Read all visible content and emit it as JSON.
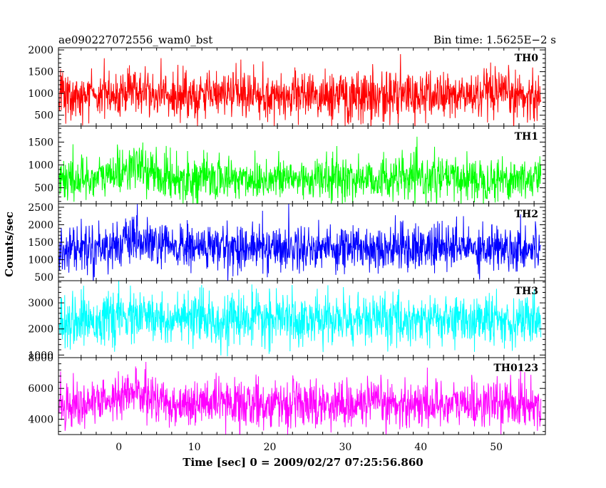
{
  "chart_data": {
    "type": "line",
    "title_left": "ae090227072556_wam0_bst",
    "title_right": "Bin time: 1.5625E−2 s",
    "xlabel": "Time [sec] 0 = 2009/02/27 07:25:56.860",
    "ylabel": "Counts/sec",
    "xlim": [
      -8,
      56.5
    ],
    "x_ticks": [
      0,
      10,
      20,
      30,
      40,
      50
    ],
    "x_tick_labels": [
      "0",
      "10",
      "20",
      "30",
      "40",
      "50"
    ],
    "data_range": [
      -7.9,
      55.9
    ],
    "bin_time": 0.015625,
    "panels": [
      {
        "name": "TH0",
        "color": "#ff0000",
        "ylim": [
          250,
          2050
        ],
        "y_ticks": [
          500,
          1000,
          1500,
          2000
        ],
        "y_tick_labels": [
          "500",
          "1000",
          "1500",
          "2000"
        ],
        "baseline": 950,
        "noise_sigma": 280,
        "burst_peak_sec": 2,
        "burst_boost": 100
      },
      {
        "name": "TH1",
        "color": "#00ff00",
        "ylim": [
          150,
          1850
        ],
        "y_ticks": [
          500,
          1000,
          1500
        ],
        "y_tick_labels": [
          "500",
          "1000",
          "1500"
        ],
        "baseline": 700,
        "noise_sigma": 240,
        "burst_peak_sec": 2,
        "burst_boost": 250
      },
      {
        "name": "TH2",
        "color": "#0000ff",
        "ylim": [
          400,
          2600
        ],
        "y_ticks": [
          500,
          1000,
          1500,
          2000,
          2500
        ],
        "y_tick_labels": [
          "500",
          "1000",
          "1500",
          "2000",
          "2500"
        ],
        "baseline": 1350,
        "noise_sigma": 330,
        "burst_peak_sec": 2,
        "burst_boost": 150
      },
      {
        "name": "TH3",
        "color": "#00ffff",
        "ylim": [
          900,
          3850
        ],
        "y_ticks": [
          1000,
          2000,
          3000
        ],
        "y_tick_labels": [
          "1000",
          "2000",
          "3000"
        ],
        "baseline": 2350,
        "noise_sigma": 480,
        "burst_peak_sec": 2,
        "burst_boost": 100
      },
      {
        "name": "TH0123",
        "color": "#ff00ff",
        "ylim": [
          3000,
          8000
        ],
        "y_ticks": [
          4000,
          6000,
          8000
        ],
        "y_tick_labels": [
          "4000",
          "6000",
          "8000"
        ],
        "baseline": 5000,
        "noise_sigma": 750,
        "burst_peak_sec": 2,
        "burst_boost": 700
      }
    ]
  }
}
